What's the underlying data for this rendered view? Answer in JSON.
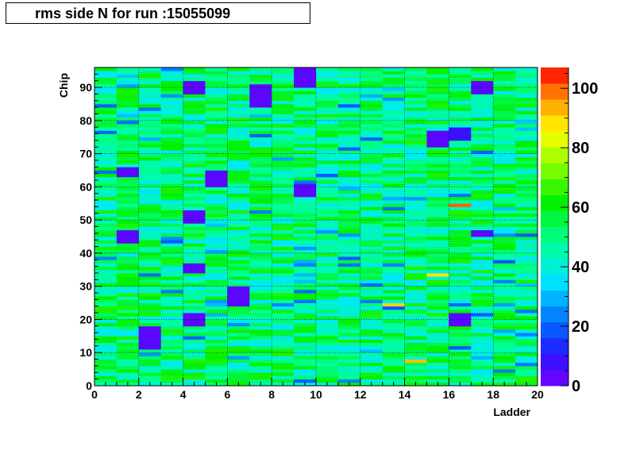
{
  "chart_data": {
    "type": "heatmap",
    "title": "rms side N for run :15055099",
    "xlabel": "Ladder",
    "ylabel": "Chip",
    "xlim": [
      0,
      20
    ],
    "ylim": [
      0,
      96
    ],
    "x_ticks": [
      "0",
      "2",
      "4",
      "6",
      "8",
      "10",
      "12",
      "14",
      "16",
      "18",
      "20"
    ],
    "y_ticks": [
      "0",
      "10",
      "20",
      "30",
      "40",
      "50",
      "60",
      "70",
      "80",
      "90"
    ],
    "colorbar": {
      "range": [
        0,
        107
      ],
      "ticks": [
        "0",
        "20",
        "40",
        "60",
        "80",
        "100"
      ]
    },
    "grid": true,
    "nx": 20,
    "ny": 96,
    "typical_value": 50,
    "notable_regions": [
      {
        "ladder": 1,
        "chip_range": [
          43,
          47
        ],
        "value": 4
      },
      {
        "ladder": 1,
        "chip_range": [
          63,
          66
        ],
        "value": 4
      },
      {
        "ladder": 2,
        "chip_range": [
          11,
          18
        ],
        "value": 4
      },
      {
        "ladder": 4,
        "chip_range": [
          88,
          92
        ],
        "value": 4
      },
      {
        "ladder": 4,
        "chip_range": [
          49,
          53
        ],
        "value": 4
      },
      {
        "ladder": 4,
        "chip_range": [
          18,
          22
        ],
        "value": 4
      },
      {
        "ladder": 4,
        "chip_range": [
          34,
          37
        ],
        "value": 4
      },
      {
        "ladder": 5,
        "chip_range": [
          60,
          65
        ],
        "value": 4
      },
      {
        "ladder": 6,
        "chip_range": [
          24,
          30
        ],
        "value": 4
      },
      {
        "ladder": 7,
        "chip_range": [
          84,
          91
        ],
        "value": 4
      },
      {
        "ladder": 9,
        "chip_range": [
          57,
          61
        ],
        "value": 4
      },
      {
        "ladder": 9,
        "chip_range": [
          90,
          96
        ],
        "value": 4
      },
      {
        "ladder": 15,
        "chip_range": [
          72,
          77
        ],
        "value": 4
      },
      {
        "ladder": 16,
        "chip_range": [
          74,
          78
        ],
        "value": 8
      },
      {
        "ladder": 16,
        "chip_range": [
          18,
          22
        ],
        "value": 4
      },
      {
        "ladder": 17,
        "chip_range": [
          88,
          92
        ],
        "value": 4
      },
      {
        "ladder": 17,
        "chip_range": [
          45,
          47
        ],
        "value": 4
      }
    ],
    "hot_cells": [
      {
        "ladder": 13,
        "chip": 24,
        "value": 90
      },
      {
        "ladder": 14,
        "chip": 7,
        "value": 92
      },
      {
        "ladder": 16,
        "chip": 54,
        "value": 100
      },
      {
        "ladder": 15,
        "chip": 33,
        "value": 88
      }
    ]
  }
}
